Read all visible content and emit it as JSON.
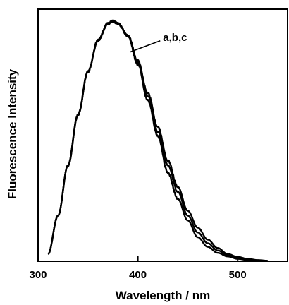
{
  "chart_data": {
    "type": "line",
    "title": "",
    "xlabel": "Wavelength / nm",
    "ylabel": "Fluorescence Intensity",
    "xlim": [
      300,
      550
    ],
    "ylim": [
      0,
      1.05
    ],
    "x_ticks": [
      300,
      400,
      500
    ],
    "y_ticks_shown": false,
    "grid": false,
    "legend": "none",
    "annotation": {
      "text": "a,b,c",
      "x": 380,
      "y": 0.93
    },
    "series": [
      {
        "x": [
          310,
          320,
          330,
          340,
          350,
          360,
          370,
          375,
          380,
          390,
          400,
          410,
          420,
          430,
          440,
          450,
          460,
          470,
          480,
          490,
          500,
          510,
          520,
          530
        ],
        "values": [
          0.03,
          0.19,
          0.4,
          0.61,
          0.79,
          0.92,
          0.99,
          1.0,
          0.99,
          0.94,
          0.82,
          0.67,
          0.52,
          0.37,
          0.26,
          0.17,
          0.1,
          0.06,
          0.035,
          0.02,
          0.01,
          0.005,
          0.003,
          0.001
        ]
      },
      {
        "x": [
          310,
          320,
          330,
          340,
          350,
          360,
          370,
          375,
          380,
          390,
          400,
          410,
          420,
          430,
          440,
          450,
          460,
          470,
          480,
          490,
          500,
          510,
          520,
          530
        ],
        "values": [
          0.03,
          0.19,
          0.4,
          0.61,
          0.79,
          0.92,
          0.99,
          1.0,
          0.99,
          0.94,
          0.83,
          0.69,
          0.54,
          0.4,
          0.29,
          0.19,
          0.12,
          0.075,
          0.045,
          0.025,
          0.015,
          0.008,
          0.004,
          0.002
        ]
      },
      {
        "x": [
          310,
          320,
          330,
          340,
          350,
          360,
          370,
          375,
          380,
          390,
          400,
          410,
          420,
          430,
          440,
          450,
          460,
          470,
          480,
          490,
          500,
          510,
          520,
          530
        ],
        "values": [
          0.03,
          0.19,
          0.4,
          0.61,
          0.79,
          0.92,
          0.99,
          1.0,
          0.99,
          0.94,
          0.835,
          0.7,
          0.56,
          0.42,
          0.31,
          0.21,
          0.14,
          0.09,
          0.055,
          0.03,
          0.018,
          0.01,
          0.005,
          0.002
        ]
      }
    ]
  }
}
